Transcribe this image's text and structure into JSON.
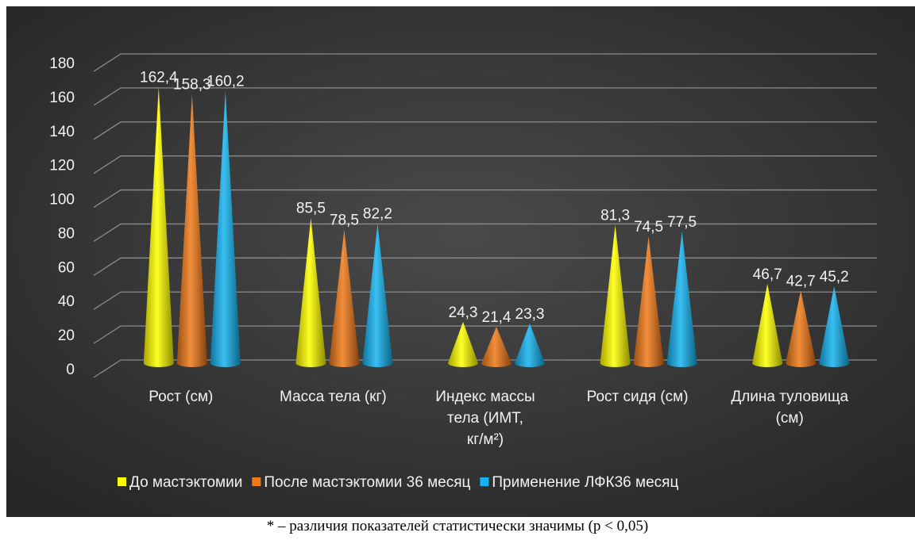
{
  "chart_data": {
    "type": "bar",
    "bar_shape": "cone",
    "categories": [
      "Рост (см)",
      "Масса тела (кг)",
      "Индекс массы тела (ИМТ, кг/м²)",
      "Рост сидя (см)",
      "Длина туловища (см)"
    ],
    "category_lines": [
      [
        "Рост (см)"
      ],
      [
        "Масса тела (кг)"
      ],
      [
        "Индекс массы",
        "тела (ИМТ,",
        "кг/м²)"
      ],
      [
        "Рост сидя (см)"
      ],
      [
        "Длина туловища",
        "(см)"
      ]
    ],
    "series": [
      {
        "name": "До мастэктомии",
        "color": "#ffff00",
        "values": [
          162.4,
          85.5,
          24.3,
          81.3,
          46.7
        ],
        "labels": [
          "162,4",
          "85,5",
          "24,3",
          "81,3",
          "46,7"
        ]
      },
      {
        "name": "После мастэктомии 36 месяц",
        "color": "#f07a1a",
        "values": [
          158.3,
          78.5,
          21.4,
          74.5,
          42.7
        ],
        "labels": [
          "158,3",
          "78,5",
          "21,4",
          "74,5",
          "42,7"
        ]
      },
      {
        "name": "Применение ЛФК36 месяц",
        "color": "#16b4ee",
        "values": [
          160.2,
          82.2,
          23.3,
          77.5,
          45.2
        ],
        "labels": [
          "160,2",
          "82,2",
          "23,3",
          "77,5",
          "45,2"
        ]
      }
    ],
    "y_ticks": [
      "0",
      "20",
      "40",
      "60",
      "80",
      "100",
      "120",
      "140",
      "160",
      "180"
    ],
    "ylim": [
      0,
      180
    ],
    "grid": true,
    "legend_position": "bottom",
    "background_color": "#3a3a3a"
  },
  "footnote": "* – различия показателей статистически значимы (p < 0,05)"
}
